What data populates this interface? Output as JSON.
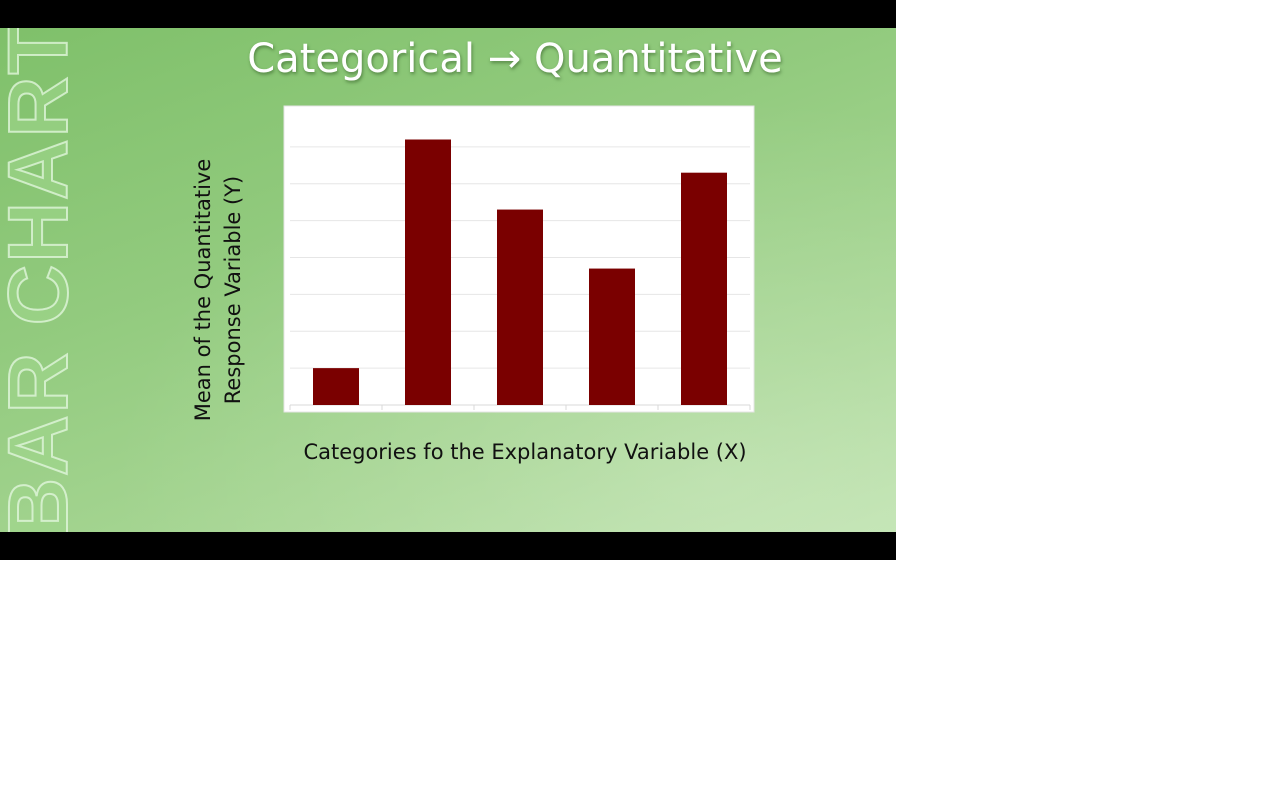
{
  "slide": {
    "title": "Categorical → Quantitative",
    "side_watermark": "BAR CHART"
  },
  "chart_data": {
    "type": "bar",
    "categories": [
      "",
      "",
      "",
      "",
      ""
    ],
    "values": [
      1.0,
      7.2,
      5.3,
      3.7,
      6.3
    ],
    "xlabel": "Categories fo the Explanatory Variable (X)",
    "ylabel": [
      "Mean of the Quantitative",
      "Response Variable (Y)"
    ],
    "ylim": [
      0,
      8
    ],
    "grid": true,
    "tick_labels_visible": false,
    "bar_color": "#7a0000",
    "plot_background": "#ffffff"
  }
}
